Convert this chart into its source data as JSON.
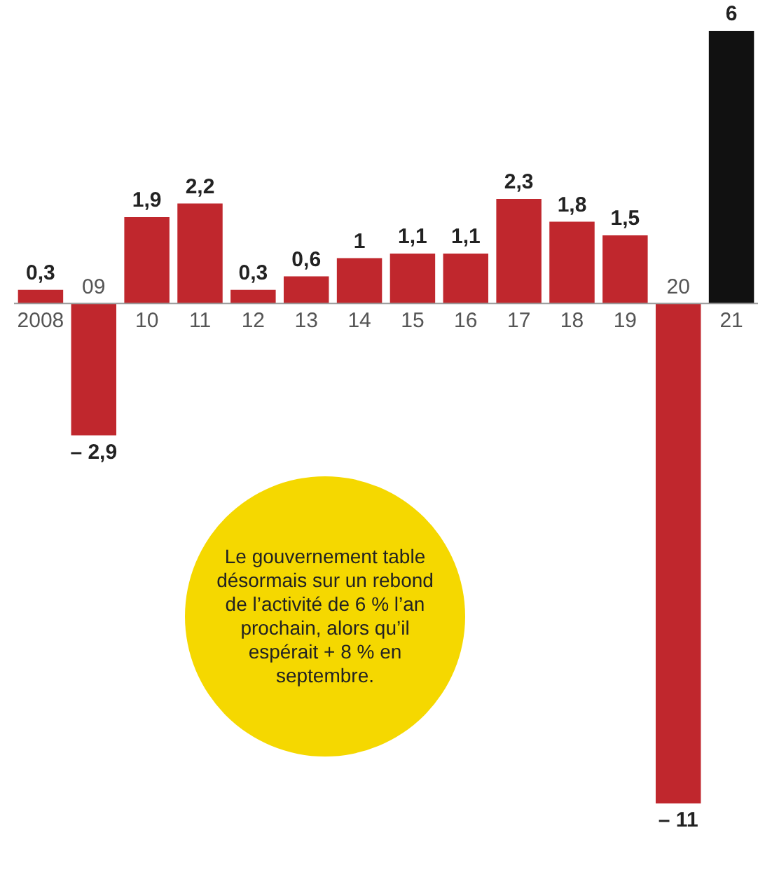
{
  "chart_data": {
    "type": "bar",
    "categories": [
      "2008",
      "09",
      "10",
      "11",
      "12",
      "13",
      "14",
      "15",
      "16",
      "17",
      "18",
      "19",
      "20",
      "21"
    ],
    "values": [
      0.3,
      -2.9,
      1.9,
      2.2,
      0.3,
      0.6,
      1,
      1.1,
      1.1,
      2.3,
      1.8,
      1.5,
      -11,
      6
    ],
    "colors": [
      "#c0272d",
      "#c0272d",
      "#c0272d",
      "#c0272d",
      "#c0272d",
      "#c0272d",
      "#c0272d",
      "#c0272d",
      "#c0272d",
      "#c0272d",
      "#c0272d",
      "#c0272d",
      "#c0272d",
      "#111111"
    ],
    "value_labels": [
      "0,3",
      "– 2,9",
      "1,9",
      "2,2",
      "0,3",
      "0,6",
      "1",
      "1,1",
      "1,1",
      "2,3",
      "1,8",
      "1,5",
      "– 11",
      "6"
    ],
    "annotations": [
      "Le gouvernement table désormais sur un rebond de l’activité de 6 % l’an prochain, alors qu’il espérait + 8 % en septembre."
    ]
  }
}
